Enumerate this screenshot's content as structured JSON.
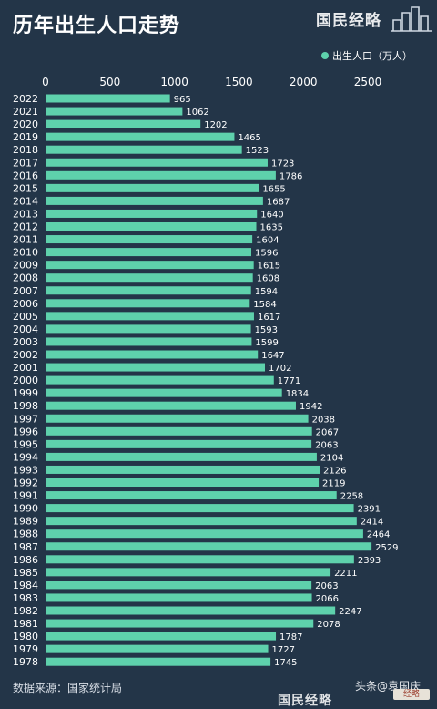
{
  "header": {
    "title": "历年出生人口走势",
    "brand": "国民经略"
  },
  "footer": {
    "source": "数据来源：国家统计局",
    "attribution": "头条@袁国庆",
    "badge": "经略",
    "brand": "国民经略"
  },
  "colors": {
    "background": "#233548",
    "bar": "#5ed1ac",
    "text": "#ffffff"
  },
  "chart_data": {
    "type": "bar",
    "orientation": "horizontal",
    "legend": {
      "label": "出生人口（万人）",
      "position": "top-right"
    },
    "xlim": [
      0,
      2600
    ],
    "xticks": [
      0,
      500,
      1000,
      1500,
      2000,
      2500
    ],
    "grid": false,
    "categories": [
      "2022",
      "2021",
      "2020",
      "2019",
      "2018",
      "2017",
      "2016",
      "2015",
      "2014",
      "2013",
      "2012",
      "2011",
      "2010",
      "2009",
      "2008",
      "2007",
      "2006",
      "2005",
      "2004",
      "2003",
      "2002",
      "2001",
      "2000",
      "1999",
      "1998",
      "1997",
      "1996",
      "1995",
      "1994",
      "1993",
      "1992",
      "1991",
      "1990",
      "1989",
      "1988",
      "1987",
      "1986",
      "1985",
      "1984",
      "1983",
      "1982",
      "1981",
      "1980",
      "1979",
      "1978"
    ],
    "series": [
      {
        "name": "出生人口（万人）",
        "values": [
          965,
          1062,
          1202,
          1465,
          1523,
          1723,
          1786,
          1655,
          1687,
          1640,
          1635,
          1604,
          1596,
          1615,
          1608,
          1594,
          1584,
          1617,
          1593,
          1599,
          1647,
          1702,
          1771,
          1834,
          1942,
          2038,
          2067,
          2063,
          2104,
          2126,
          2119,
          2258,
          2391,
          2414,
          2464,
          2529,
          2393,
          2211,
          2063,
          2066,
          2247,
          2078,
          1787,
          1727,
          1745
        ]
      }
    ]
  }
}
